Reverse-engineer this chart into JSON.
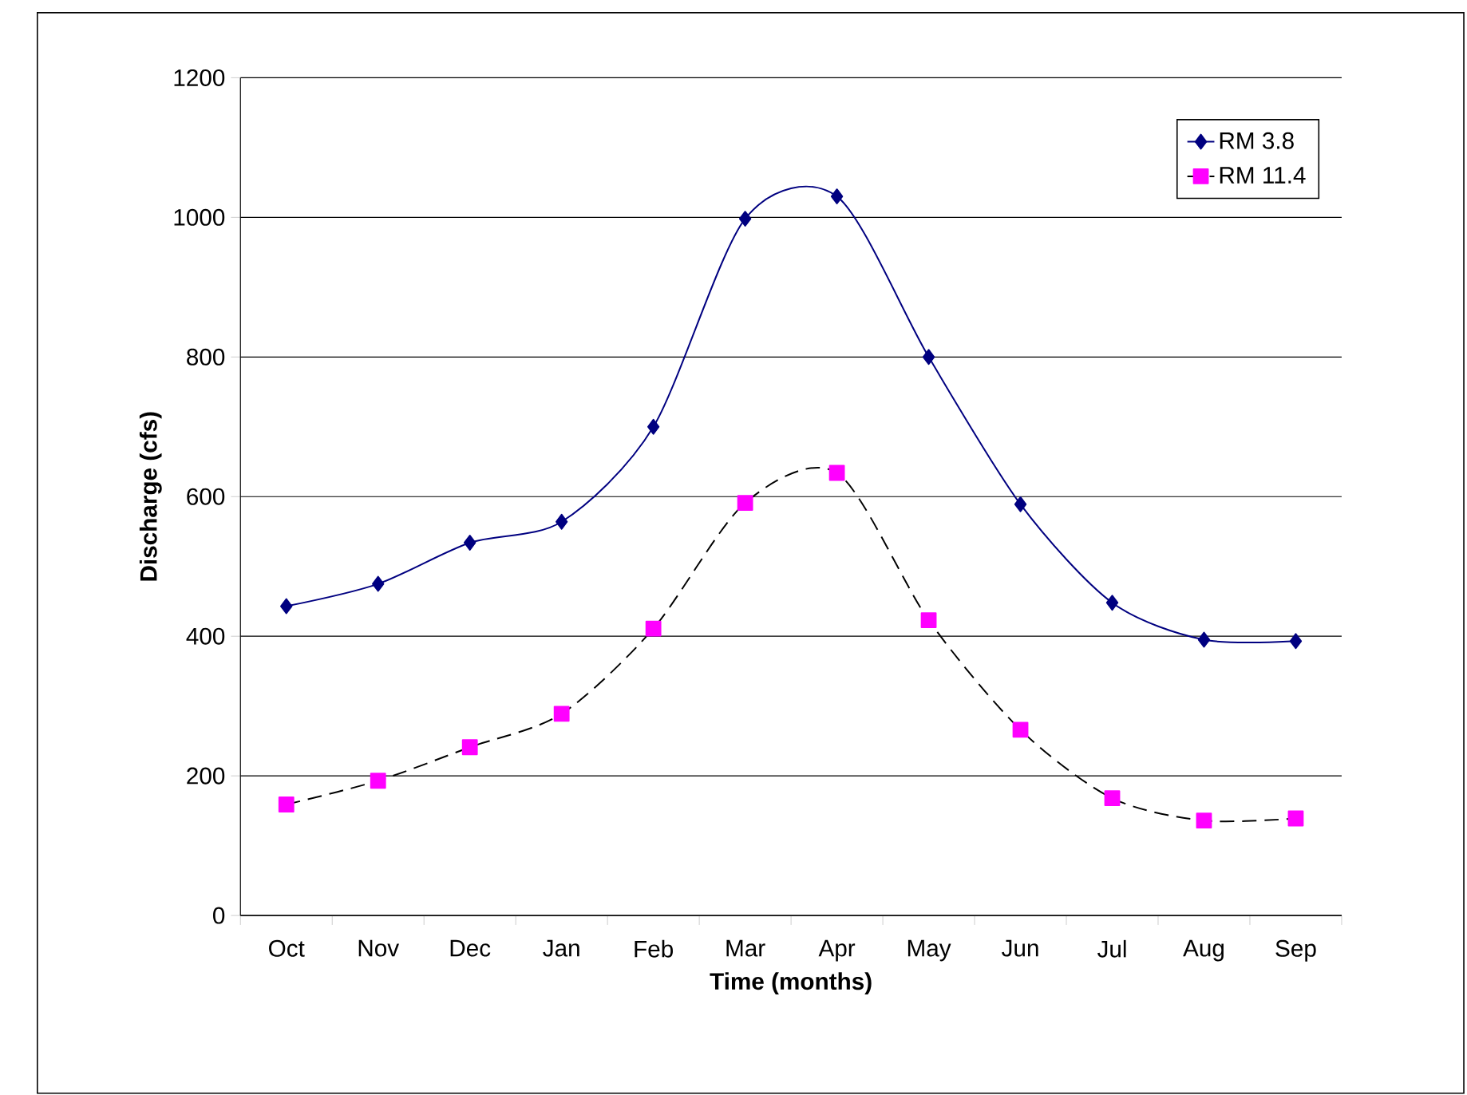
{
  "chart_data": {
    "type": "line",
    "xlabel": "Time (months)",
    "ylabel": "Discharge (cfs)",
    "categories": [
      "Oct",
      "Nov",
      "Dec",
      "Jan",
      "Feb",
      "Mar",
      "Apr",
      "May",
      "Jun",
      "Jul",
      "Aug",
      "Sep"
    ],
    "series": [
      {
        "name": "RM 3.8",
        "color": "#000080",
        "marker": "diamond",
        "line_style": "solid",
        "values": [
          443,
          475,
          534,
          564,
          700,
          998,
          1030,
          800,
          589,
          448,
          395,
          393
        ]
      },
      {
        "name": "RM 11.4",
        "color": "#ff00ff",
        "marker": "square",
        "line_style": "dashed",
        "values": [
          159,
          193,
          241,
          289,
          411,
          591,
          634,
          423,
          266,
          168,
          136,
          139
        ]
      }
    ],
    "ylim": [
      0,
      1200
    ],
    "yticks": [
      0,
      200,
      400,
      600,
      800,
      1000,
      1200
    ],
    "grid": "y",
    "legend": "top right"
  }
}
